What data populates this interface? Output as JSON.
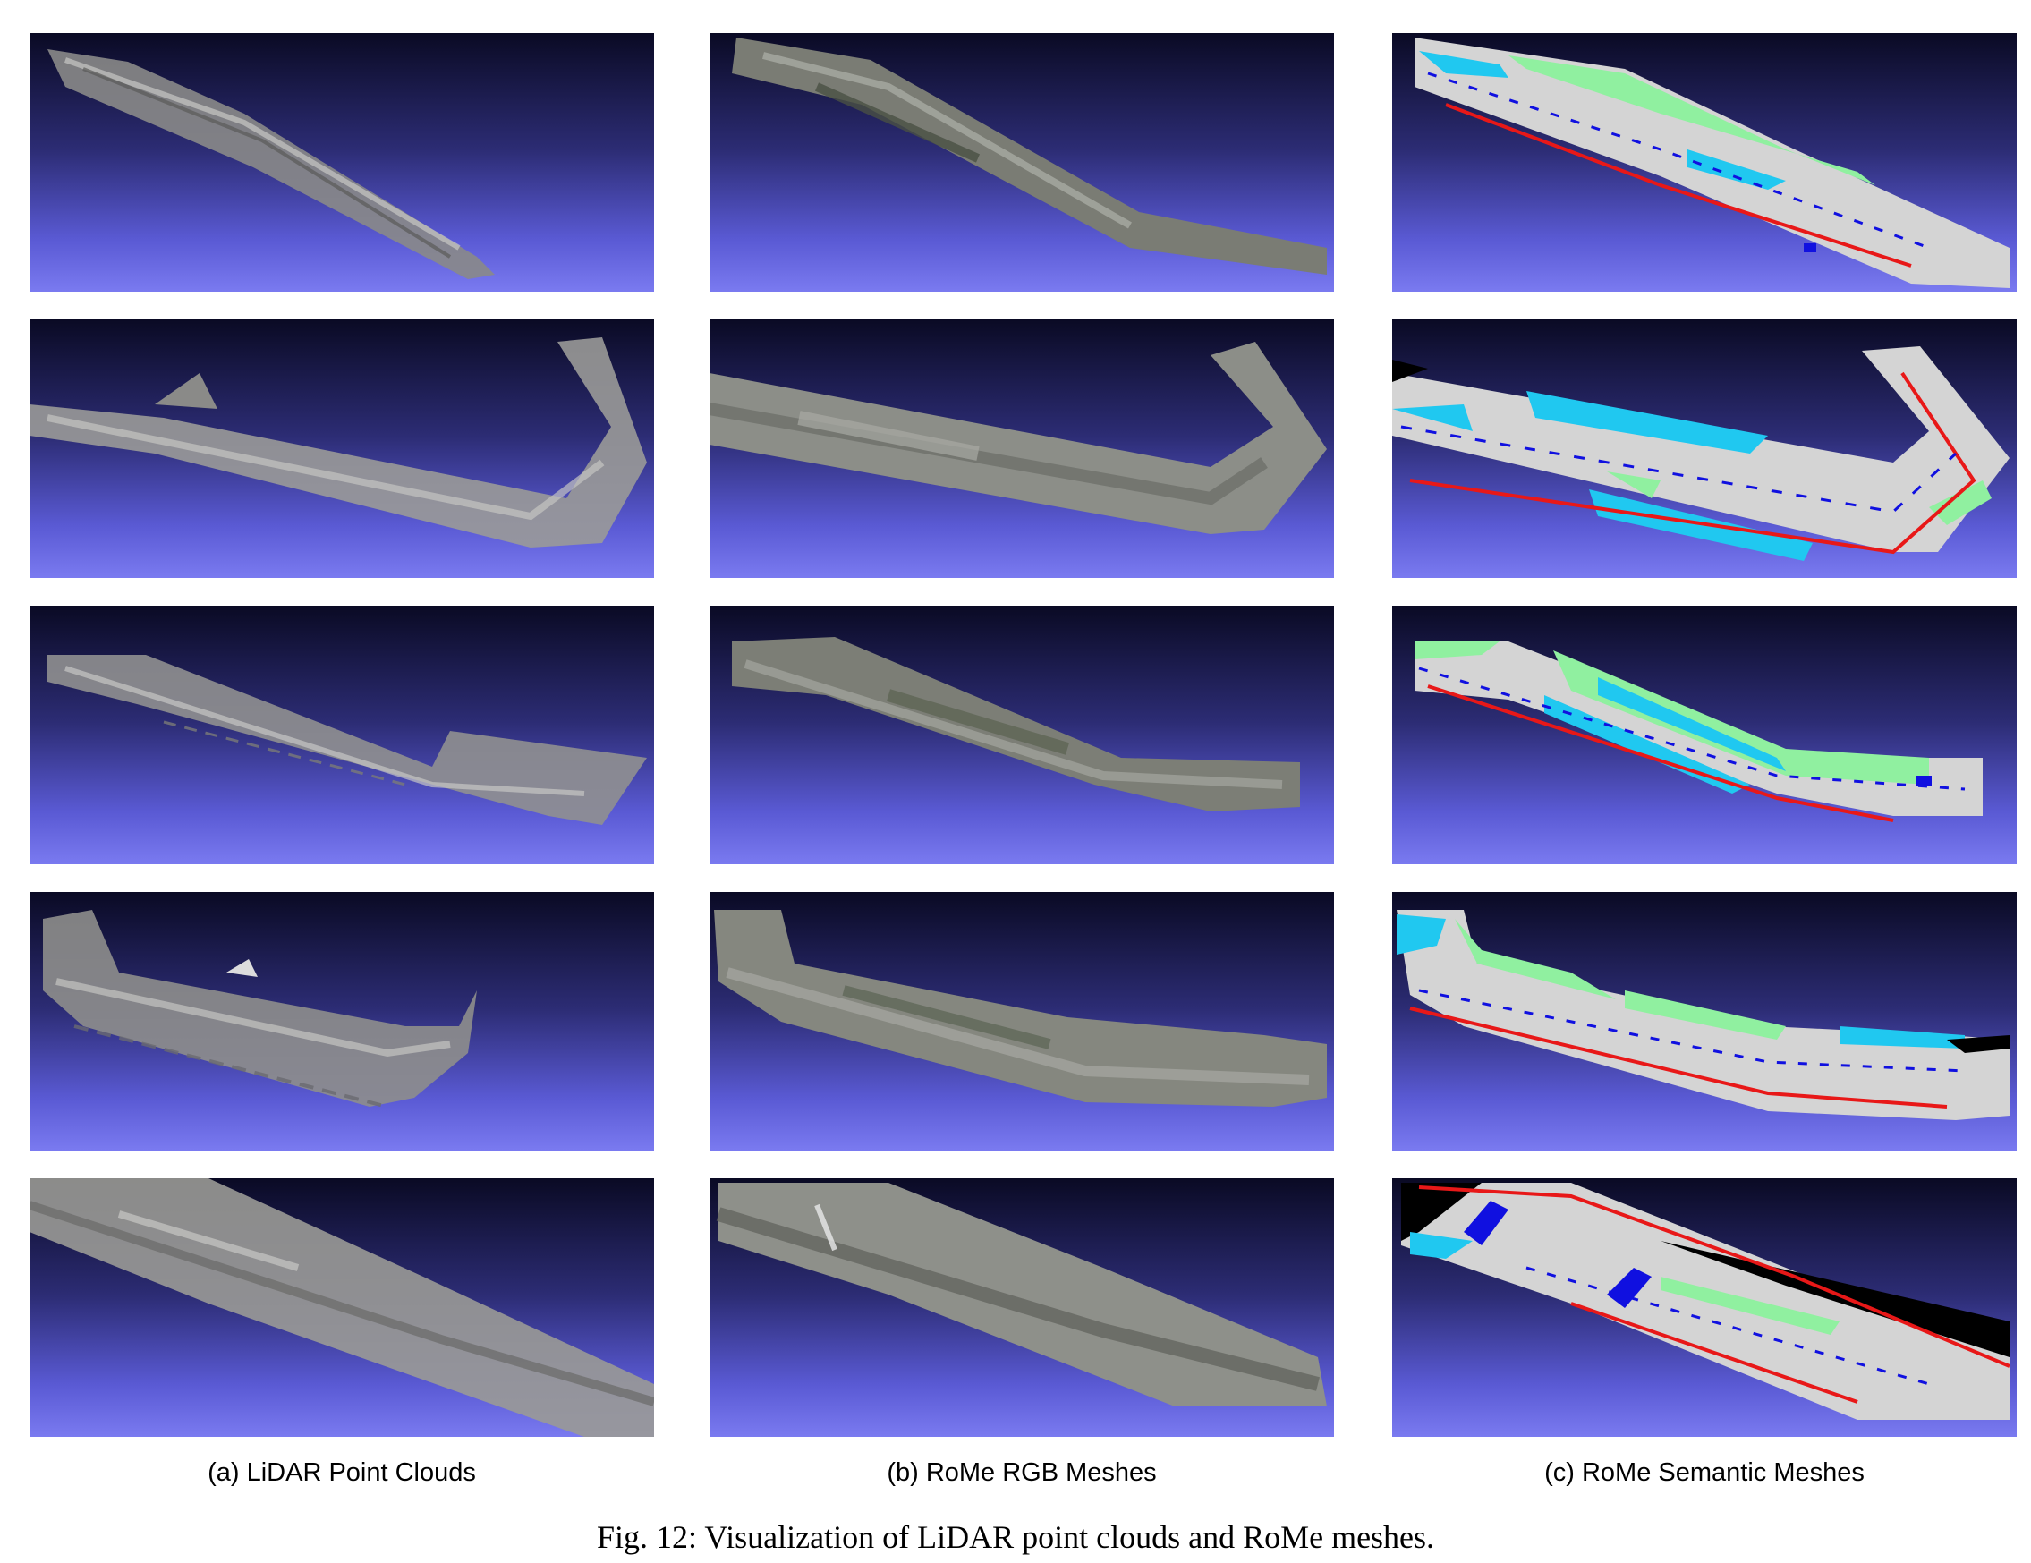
{
  "columns": [
    {
      "label": "(a) LiDAR Point Clouds",
      "style": "lidar"
    },
    {
      "label": "(b) RoMe RGB Meshes",
      "style": "rgb"
    },
    {
      "label": "(c) RoMe Semantic Meshes",
      "style": "semantic"
    }
  ],
  "caption": "Fig. 12: Visualization of LiDAR point clouds and RoMe meshes.",
  "colors": {
    "background_top": "#0a0a24",
    "background_bottom": "#7a7af0",
    "semantic_road": "#d4d4d4",
    "semantic_vegetation": "#90f0a0",
    "semantic_sidewalk": "#20c8f0",
    "semantic_curb": "#e81818",
    "semantic_marking": "#1010e0"
  }
}
